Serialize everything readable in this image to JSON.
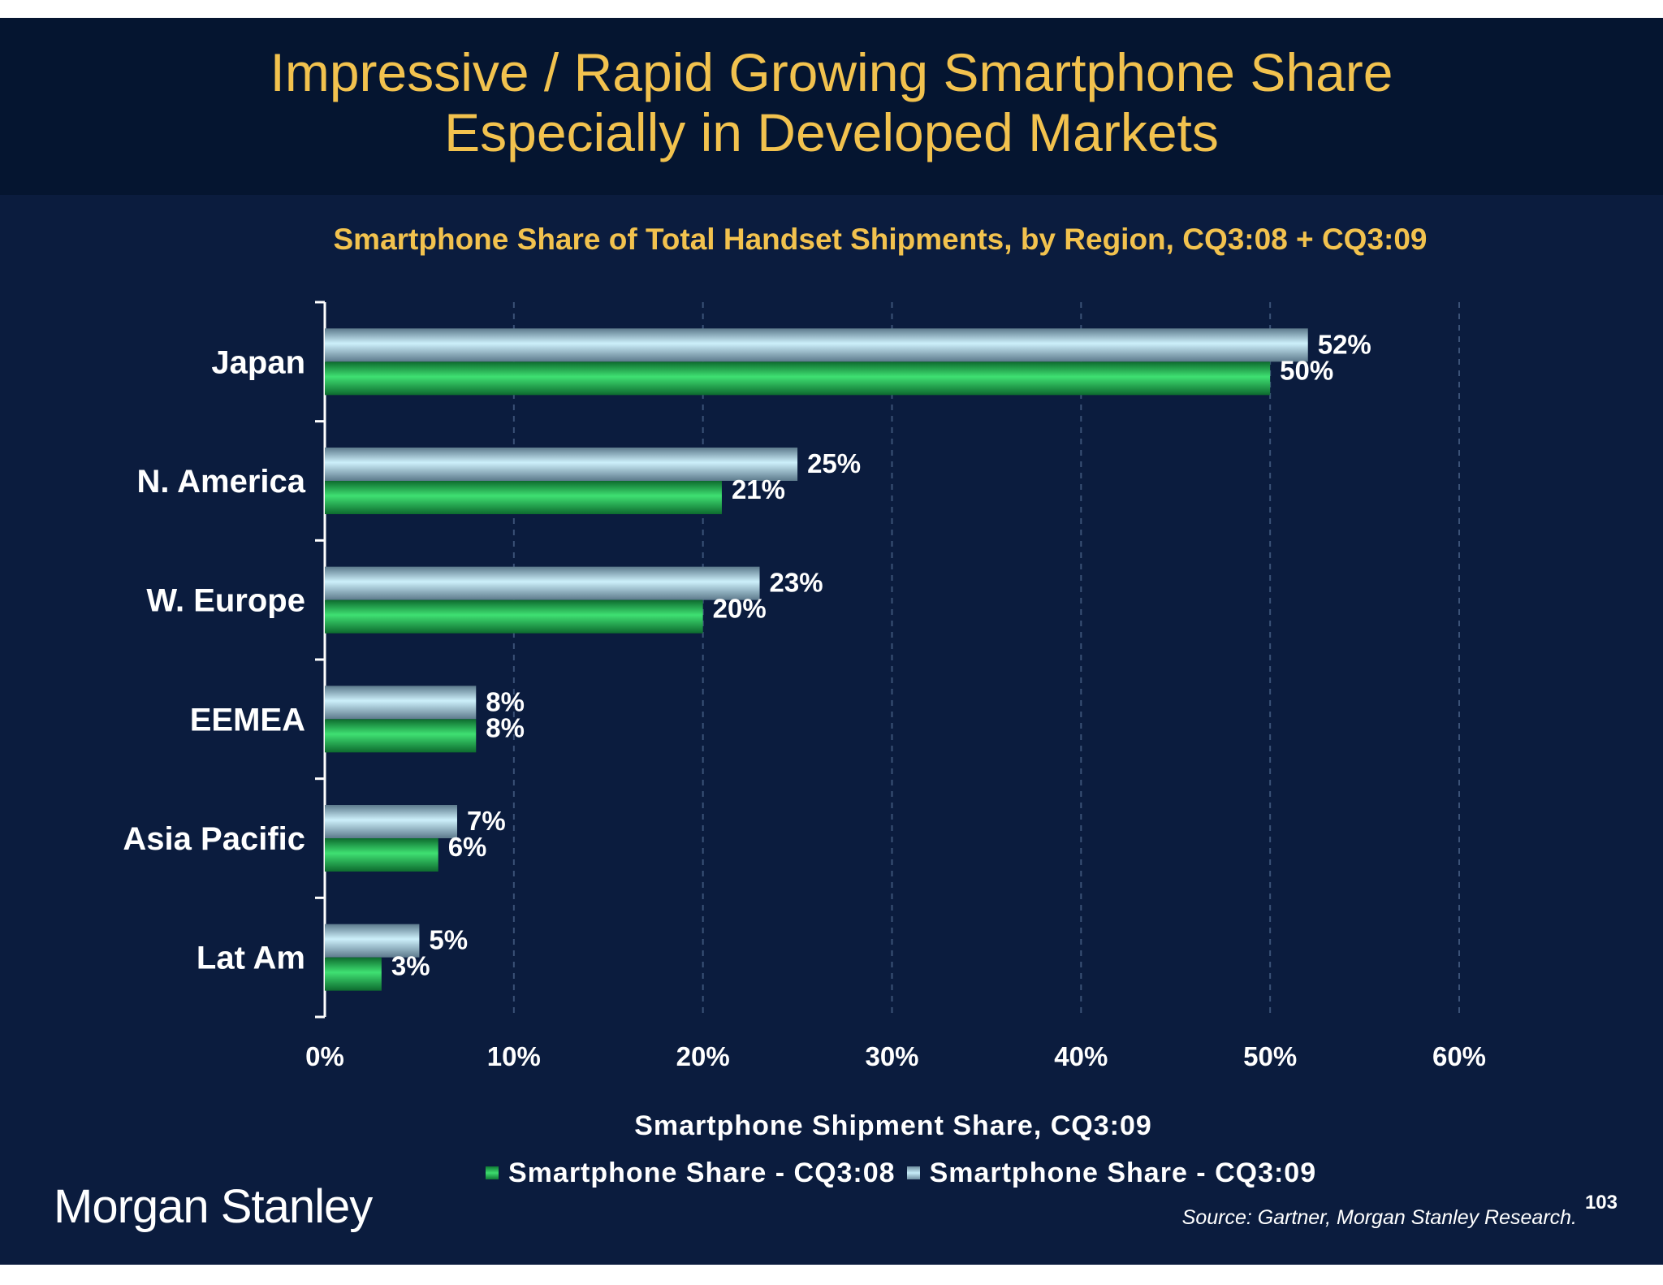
{
  "slide": {
    "title_line1": "Impressive / Rapid Growing Smartphone Share",
    "title_line2": "Especially in Developed Markets",
    "logo_text": "Morgan Stanley",
    "source": "Source: Gartner, Morgan Stanley Research.",
    "page_number": "103",
    "colors": {
      "background": "#0b1c3e",
      "title_band": "#051530",
      "title_text": "#f2c24e",
      "cq308_series": "#2cc35e",
      "cq309_series": "#a9dcee"
    }
  },
  "chart_data": {
    "type": "bar",
    "orientation": "horizontal",
    "title": "Smartphone Share of Total Handset Shipments, by Region, CQ3:08 + CQ3:09",
    "xlabel": "Smartphone Shipment Share, CQ3:09",
    "ylabel": "",
    "categories": [
      "Japan",
      "N. America",
      "W. Europe",
      "EEMEA",
      "Asia Pacific",
      "Lat Am"
    ],
    "series": [
      {
        "name": "Smartphone Share - CQ3:08",
        "values": [
          50,
          21,
          20,
          8,
          6,
          3
        ],
        "labels": [
          "50%",
          "21%",
          "20%",
          "8%",
          "6%",
          "3%"
        ]
      },
      {
        "name": "Smartphone Share - CQ3:09",
        "values": [
          52,
          25,
          23,
          8,
          7,
          5
        ],
        "labels": [
          "52%",
          "25%",
          "23%",
          "8%",
          "7%",
          "5%"
        ]
      }
    ],
    "xlim": [
      0,
      60
    ],
    "x_ticks": [
      "0%",
      "10%",
      "20%",
      "30%",
      "40%",
      "50%",
      "60%"
    ],
    "grid": "vertical dashed",
    "legend_position": "bottom"
  }
}
